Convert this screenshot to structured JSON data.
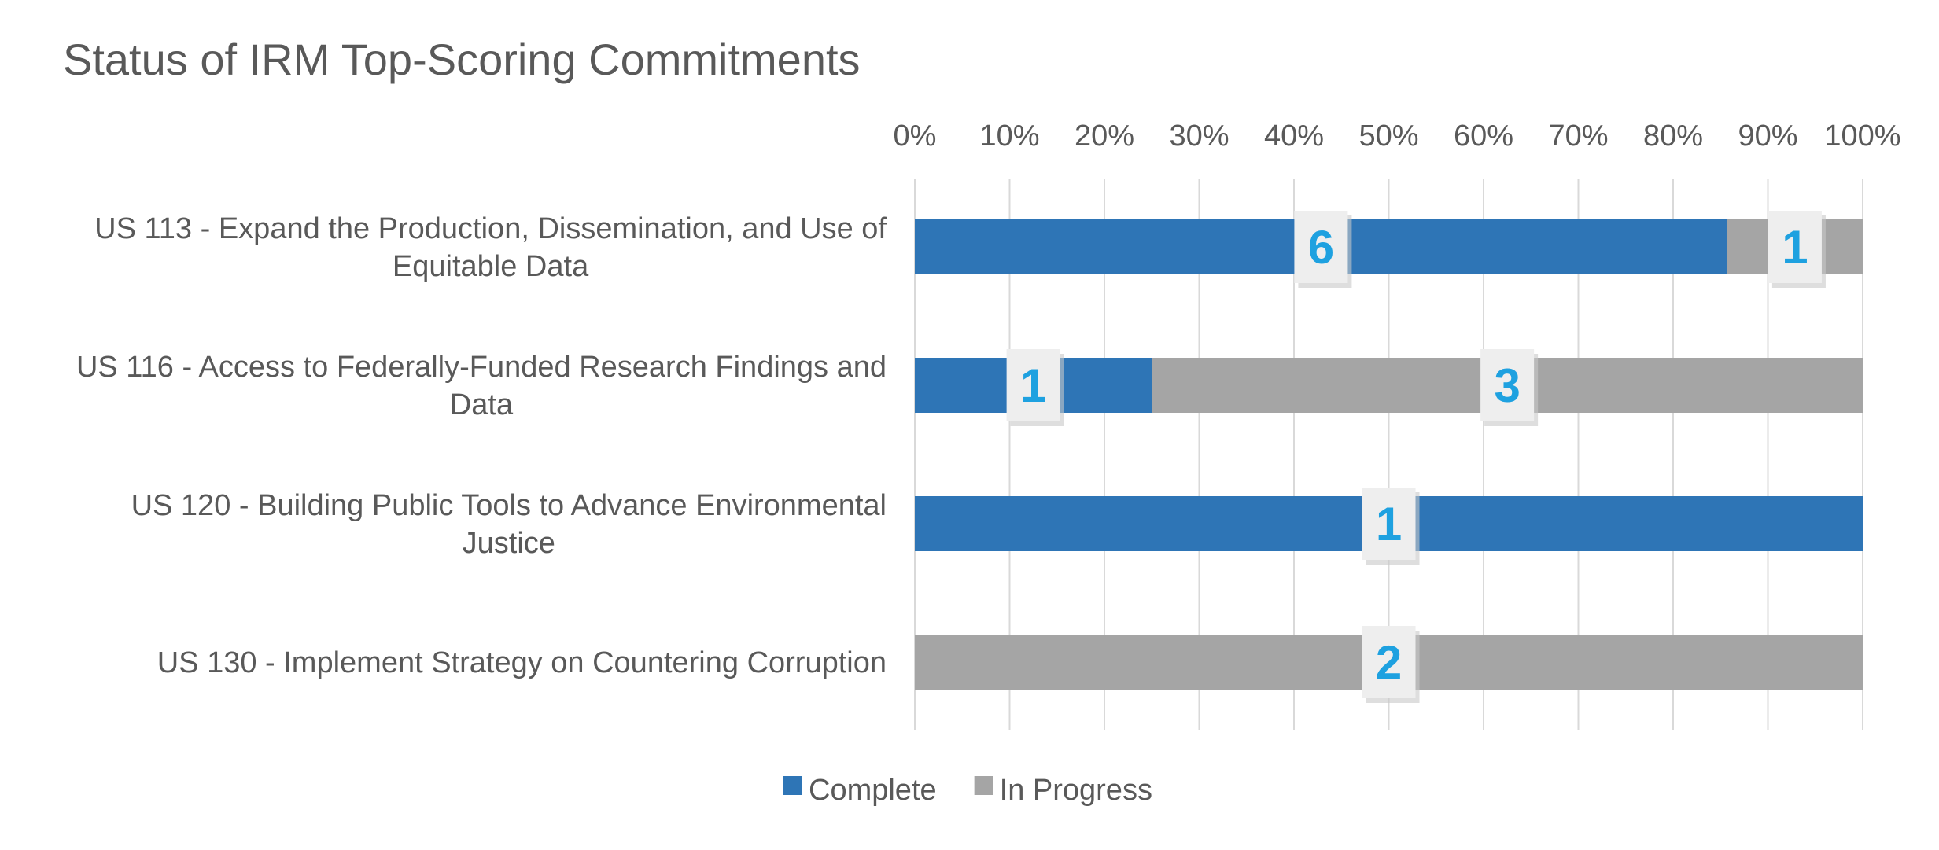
{
  "chart_data": {
    "type": "bar",
    "orientation": "horizontal",
    "stacking": "percent",
    "title": "Status of IRM Top-Scoring Commitments",
    "xlabel": "",
    "ylabel": "",
    "xlim": [
      0,
      100
    ],
    "x_ticks": [
      "0%",
      "10%",
      "20%",
      "30%",
      "40%",
      "50%",
      "60%",
      "70%",
      "80%",
      "90%",
      "100%"
    ],
    "x_axis_position": "top",
    "grid": true,
    "legend_position": "bottom",
    "categories": [
      [
        "US 113 - Expand the Production, Dissemination, and Use of",
        "Equitable Data"
      ],
      [
        "US 116 - Access to Federally-Funded Research Findings and",
        "Data"
      ],
      [
        "US 120 - Building Public Tools to Advance Environmental",
        "Justice"
      ],
      [
        "US 130 - Implement Strategy on Countering Corruption"
      ]
    ],
    "series": [
      {
        "name": "Complete",
        "color": "#2e75b6",
        "values": [
          6,
          1,
          1,
          0
        ]
      },
      {
        "name": "In Progress",
        "color": "#a5a5a5",
        "values": [
          1,
          3,
          0,
          2
        ]
      }
    ],
    "data_label_color": "#1ea1e0"
  }
}
